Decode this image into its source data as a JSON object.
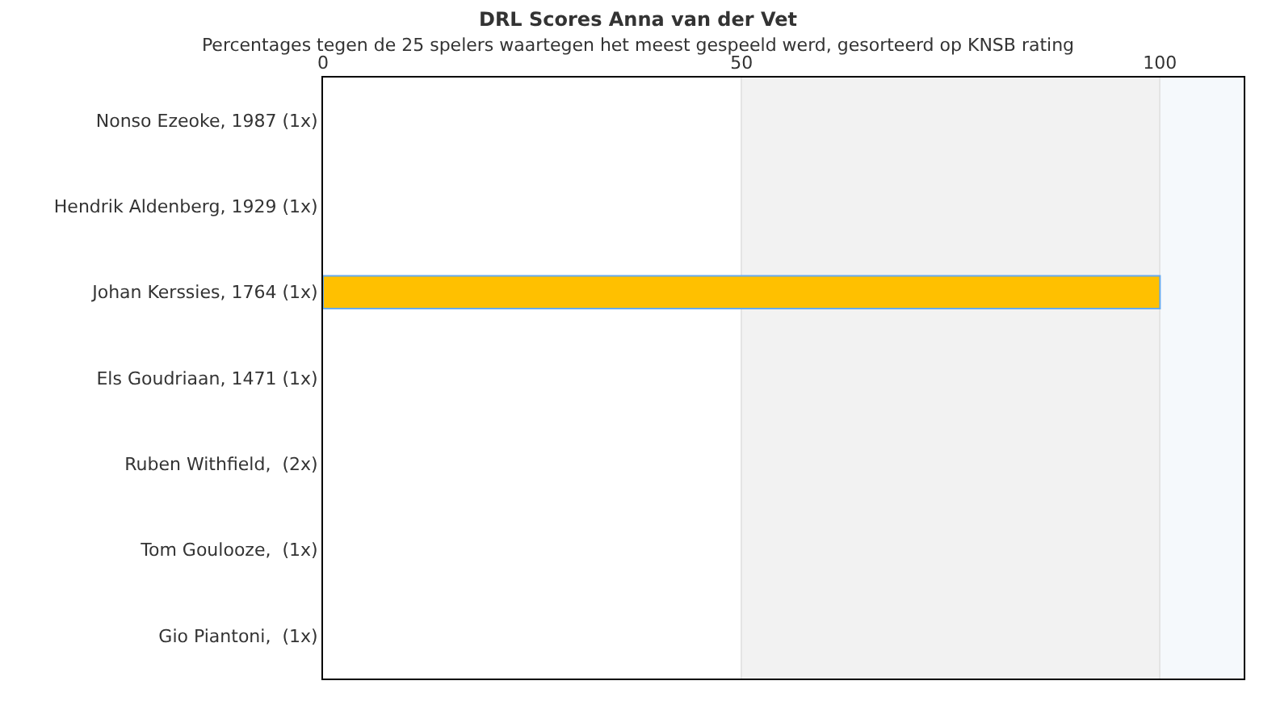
{
  "chart_data": {
    "type": "bar",
    "orientation": "horizontal",
    "title": "DRL Scores Anna van der Vet",
    "subtitle": "Percentages tegen de 25 spelers waartegen het meest gespeeld werd, gesorteerd op KNSB rating",
    "categories": [
      "Nonso Ezeoke, 1987 (1x)",
      "Hendrik Aldenberg, 1929 (1x)",
      "Johan Kerssies, 1764 (1x)",
      "Els Goudriaan, 1471 (1x)",
      "Ruben Withfield,  (2x)",
      "Tom Goulooze,  (1x)",
      "Gio Piantoni,  (1x)"
    ],
    "values": [
      0,
      0,
      100,
      0,
      0,
      0,
      0
    ],
    "color": "#ffc000",
    "xlim": [
      0,
      110
    ],
    "xticks": [
      0,
      50,
      100
    ],
    "grid": "x",
    "bands": [
      {
        "axis": "x",
        "from": 50,
        "to": 100,
        "color": "#f2f2f2"
      },
      {
        "axis": "x",
        "from": 100,
        "to": 110,
        "color": "#f5f9fc"
      }
    ]
  }
}
